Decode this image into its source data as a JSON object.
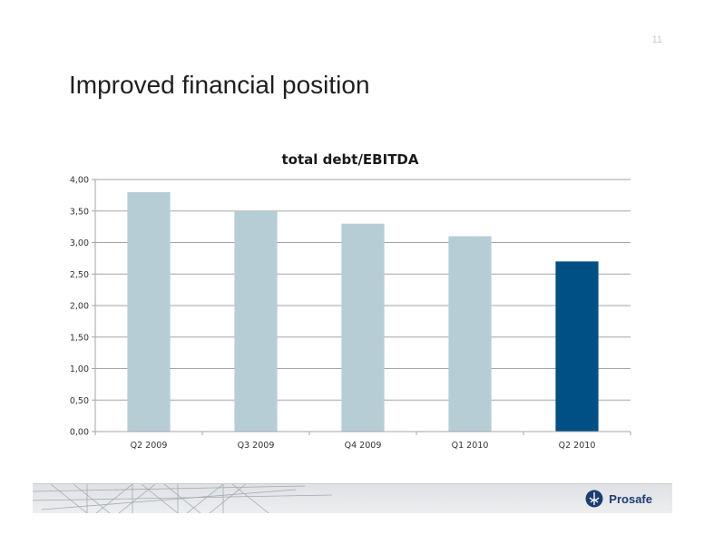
{
  "page": {
    "number": "11",
    "title": "Improved financial position"
  },
  "brand": {
    "name": "Prosafe",
    "icon": "prosafe-logo-icon"
  },
  "colors": {
    "bar_default": "#b6cdd5",
    "bar_highlight": "#005085",
    "grid": "#a6a6a6"
  },
  "chart_data": {
    "type": "bar",
    "title": "total debt/EBITDA",
    "categories": [
      "Q2 2009",
      "Q3 2009",
      "Q4 2009",
      "Q1 2010",
      "Q2 2010"
    ],
    "values": [
      3.8,
      3.5,
      3.3,
      3.1,
      2.7
    ],
    "highlight_index": 4,
    "ylim": [
      0,
      4
    ],
    "yticks": [
      0,
      0.5,
      1,
      1.5,
      2,
      2.5,
      3,
      3.5,
      4
    ],
    "ytick_labels": [
      "0,00",
      "0,50",
      "1,00",
      "1,50",
      "2,00",
      "2,50",
      "3,00",
      "3,50",
      "4,00"
    ],
    "xlabel": "",
    "ylabel": "",
    "grid": true,
    "legend": "none"
  }
}
